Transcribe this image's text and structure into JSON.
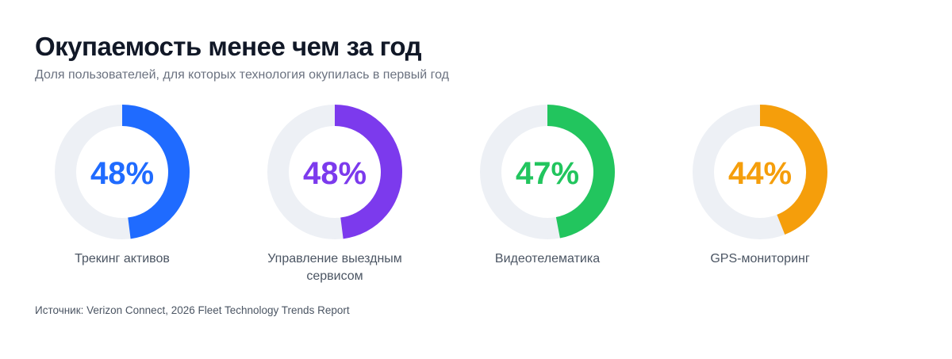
{
  "title": "Окупаемость менее чем за год",
  "subtitle": "Доля пользователей, для которых технология окупилась в первый год",
  "source": "Источник: Verizon Connect, 2026 Fleet Technology Trends Report",
  "chart_data": [
    {
      "type": "donut",
      "categories": [
        "Трекинг активов"
      ],
      "values": [
        48
      ],
      "value_labels": [
        "48%"
      ],
      "color": "#1f6bff",
      "ylim": [
        0,
        100
      ]
    },
    {
      "type": "donut",
      "categories": [
        "Управление выездным сервисом"
      ],
      "values": [
        48
      ],
      "value_labels": [
        "48%"
      ],
      "color": "#7c3aed",
      "ylim": [
        0,
        100
      ]
    },
    {
      "type": "donut",
      "categories": [
        "Видеотелематика"
      ],
      "values": [
        47
      ],
      "value_labels": [
        "47%"
      ],
      "color": "#22c55e",
      "ylim": [
        0,
        100
      ]
    },
    {
      "type": "donut",
      "categories": [
        "GPS-мониторинг"
      ],
      "values": [
        44
      ],
      "value_labels": [
        "44%"
      ],
      "color": "#f59e0b",
      "ylim": [
        0,
        100
      ]
    }
  ]
}
